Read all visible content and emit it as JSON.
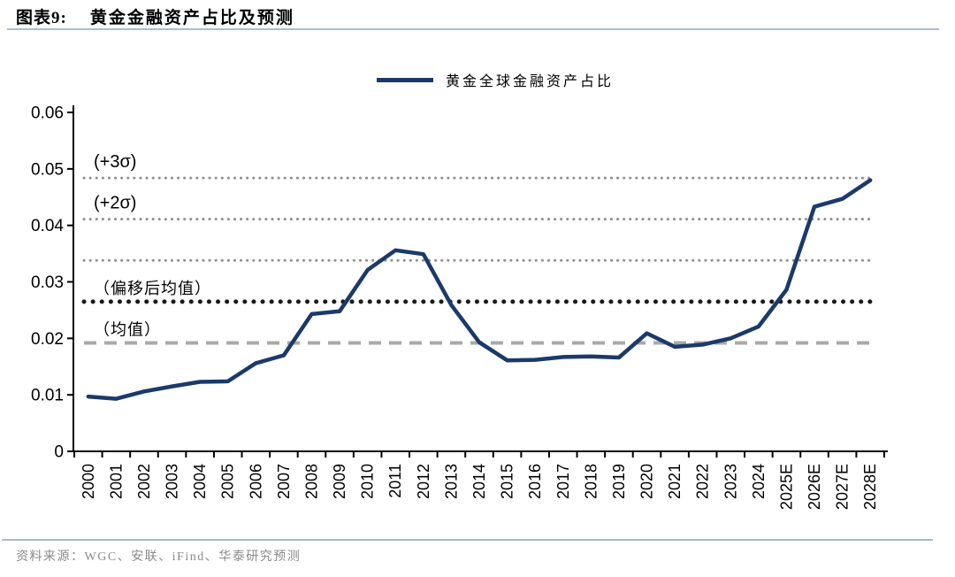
{
  "figure": {
    "label": "图表9:",
    "title": "黄金金融资产占比及预测"
  },
  "legend": {
    "series_label": "黄金全球金融资产占比"
  },
  "source": {
    "text": "资料来源：WGC、安联、iFind、华泰研究预测"
  },
  "colors": {
    "series_line": "#1b3a6b",
    "sigma_dotted": "#8f8f8f",
    "shifted_mean_dotted": "#1a1a1a",
    "mean_dashed": "#a9a9a9",
    "axis": "#000000",
    "header_rule": "#aabdd2",
    "footer_rule": "#a6b9ce",
    "source_text": "#8a8a8a"
  },
  "chart_data": {
    "type": "line",
    "title": "黄金金融资产占比及预测",
    "categories": [
      "2000",
      "2001",
      "2002",
      "2003",
      "2004",
      "2005",
      "2006",
      "2007",
      "2008",
      "2009",
      "2010",
      "2011",
      "2012",
      "2013",
      "2014",
      "2015",
      "2016",
      "2017",
      "2018",
      "2019",
      "2020",
      "2021",
      "2022",
      "2023",
      "2024",
      "2025E",
      "2026E",
      "2027E",
      "2028E"
    ],
    "series": [
      {
        "name": "黄金全球金融资产占比",
        "values": [
          0.0097,
          0.0093,
          0.0106,
          0.0115,
          0.0123,
          0.0124,
          0.0156,
          0.017,
          0.0243,
          0.0248,
          0.0321,
          0.0356,
          0.0349,
          0.0259,
          0.0193,
          0.0161,
          0.0162,
          0.0167,
          0.0168,
          0.0166,
          0.0209,
          0.0185,
          0.0189,
          0.02,
          0.0221,
          0.0286,
          0.0433,
          0.0447,
          0.048
        ]
      }
    ],
    "xlabel": "",
    "ylabel": "",
    "ylim": [
      0,
      0.06
    ],
    "yticks": [
      0,
      0.01,
      0.02,
      0.03,
      0.04,
      0.05,
      0.06
    ],
    "ytick_labels": [
      "0",
      "0.01",
      "0.02",
      "0.03",
      "0.04",
      "0.05",
      "0.06"
    ],
    "grid": false,
    "legend_position": "top-center",
    "reference_lines": [
      {
        "label": "(+3σ)",
        "value": 0.0484,
        "style": "dotted-gray"
      },
      {
        "label": "(+2σ)",
        "value": 0.0411,
        "style": "dotted-gray"
      },
      {
        "label": "",
        "value": 0.0338,
        "style": "dotted-gray"
      },
      {
        "label": "（偏移后均值）",
        "value": 0.0265,
        "style": "dotted-black"
      },
      {
        "label": "（均值）",
        "value": 0.0192,
        "style": "dashed-gray"
      }
    ]
  }
}
